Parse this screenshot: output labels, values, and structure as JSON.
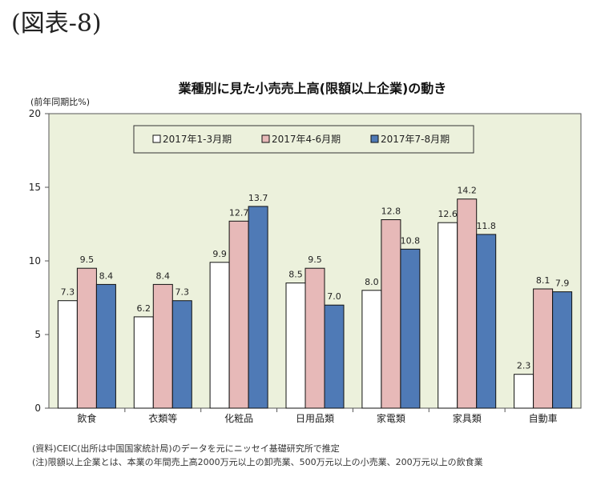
{
  "figure_label": "(図表-8)",
  "footnotes": {
    "source": "(資料)CEIC(出所は中国国家統計局)のデータを元にニッセイ基礎研究所で推定",
    "note": "(注)限額以上企業とは、本業の年間売上高2000万元以上の卸売業、500万元以上の小売業、200万元以上の飲食業"
  },
  "colors": {
    "plot_bg": "#ecf1dc",
    "series": [
      "#ffffff",
      "#e7b9b8",
      "#4f7ab6"
    ],
    "bar_stroke": "#111111"
  },
  "chart_data": {
    "type": "bar",
    "title": "業種別に見た小売売上高(限額以上企業)の動き",
    "ylabel": "(前年同期比%)",
    "xlabel": "",
    "ylim": [
      0,
      20
    ],
    "yticks": [
      0,
      5,
      10,
      15,
      20
    ],
    "grid": false,
    "legend_position": "top",
    "categories": [
      "飲食",
      "衣類等",
      "化粧品",
      "日用品類",
      "家電類",
      "家具類",
      "自動車"
    ],
    "series": [
      {
        "name": "2017年1-3月期",
        "values": [
          7.3,
          6.2,
          9.9,
          8.5,
          8.0,
          12.6,
          2.3
        ],
        "labels": [
          "7.3",
          "6.2",
          "9.9",
          "8.5",
          "8.0",
          "12.6",
          "2.3"
        ]
      },
      {
        "name": "2017年4-6月期",
        "values": [
          9.5,
          8.4,
          12.7,
          9.5,
          12.8,
          14.2,
          8.1
        ],
        "labels": [
          "9.5",
          "8.4",
          "12.7",
          "9.5",
          "12.8",
          "14.2",
          "8.1"
        ]
      },
      {
        "name": "2017年7-8月期",
        "values": [
          8.4,
          7.3,
          13.7,
          7.0,
          10.8,
          11.8,
          7.9
        ],
        "labels": [
          "8.4",
          "7.3",
          "13.7",
          "7.0",
          "10.8",
          "11.8",
          "7.9"
        ]
      }
    ]
  }
}
